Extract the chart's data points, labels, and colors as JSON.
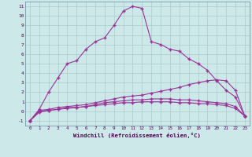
{
  "x": [
    0,
    1,
    2,
    3,
    4,
    5,
    6,
    7,
    8,
    9,
    10,
    11,
    12,
    13,
    14,
    15,
    16,
    17,
    18,
    19,
    20,
    21,
    22,
    23
  ],
  "line1": [
    -1.0,
    0.2,
    2.0,
    3.5,
    5.0,
    5.3,
    6.5,
    7.3,
    7.7,
    9.0,
    10.5,
    11.0,
    10.8,
    7.3,
    7.0,
    6.5,
    6.3,
    5.5,
    5.0,
    4.3,
    3.2,
    2.2,
    1.5,
    -0.5
  ],
  "line2": [
    -1.0,
    0.1,
    0.2,
    0.4,
    0.5,
    0.6,
    0.7,
    0.9,
    1.1,
    1.3,
    1.5,
    1.6,
    1.7,
    1.9,
    2.1,
    2.3,
    2.5,
    2.8,
    3.0,
    3.2,
    3.3,
    3.2,
    2.2,
    -0.5
  ],
  "line3": [
    -1.0,
    -0.1,
    0.1,
    0.2,
    0.4,
    0.4,
    0.5,
    0.6,
    0.7,
    0.8,
    0.9,
    0.9,
    1.0,
    1.0,
    1.0,
    1.0,
    0.9,
    0.9,
    0.8,
    0.8,
    0.7,
    0.6,
    0.3,
    -0.5
  ],
  "line4": [
    -1.0,
    0.0,
    0.1,
    0.2,
    0.3,
    0.4,
    0.5,
    0.7,
    0.9,
    1.0,
    1.1,
    1.2,
    1.2,
    1.3,
    1.3,
    1.3,
    1.2,
    1.2,
    1.1,
    1.0,
    0.9,
    0.8,
    0.5,
    -0.5
  ],
  "line_color": "#993399",
  "bg_color": "#cce8e8",
  "grid_color": "#aacccc",
  "xlabel": "Windchill (Refroidissement éolien,°C)",
  "ylim": [
    -1.5,
    11.5
  ],
  "xlim": [
    -0.5,
    23.5
  ],
  "yticks": [
    -1,
    0,
    1,
    2,
    3,
    4,
    5,
    6,
    7,
    8,
    9,
    10,
    11
  ],
  "xticks": [
    0,
    1,
    2,
    3,
    4,
    5,
    6,
    7,
    8,
    9,
    10,
    11,
    12,
    13,
    14,
    15,
    16,
    17,
    18,
    19,
    20,
    21,
    22,
    23
  ],
  "spine_color": "#7799aa",
  "tick_color": "#550055",
  "xlabel_color": "#550055"
}
